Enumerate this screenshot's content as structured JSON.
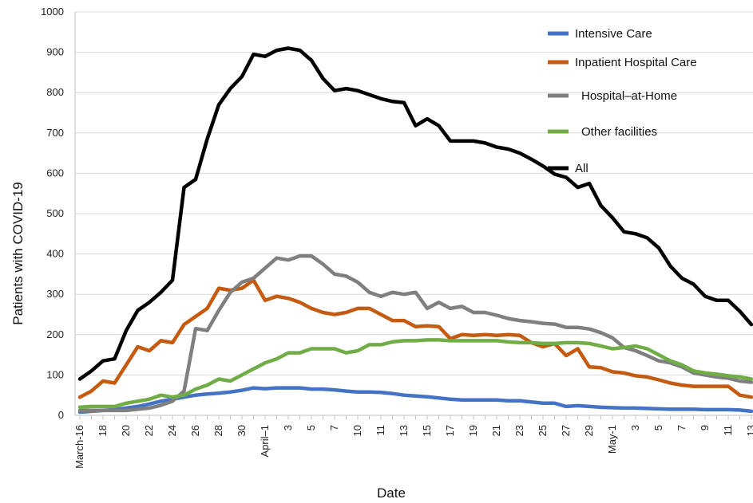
{
  "chart_data": {
    "type": "line",
    "xlabel": "Date",
    "ylabel": "Patients with COVID-19",
    "ylim": [
      0,
      1000
    ],
    "yticks": [
      0,
      100,
      200,
      300,
      400,
      500,
      600,
      700,
      800,
      900,
      1000
    ],
    "ytick_labels": [
      "0",
      "100",
      "200",
      "300",
      "400",
      "500",
      "600",
      "700",
      "800",
      "900",
      "1000"
    ],
    "x": [
      "March-16",
      "17",
      "18",
      "19",
      "20",
      "21",
      "22",
      "23",
      "24",
      "25",
      "26",
      "27",
      "28",
      "29",
      "30",
      "31",
      "April-1",
      "2",
      "3",
      "4",
      "5",
      "6",
      "7",
      "8",
      "9",
      "10",
      "11",
      "12",
      "13",
      "14",
      "15",
      "16",
      "17",
      "18",
      "19",
      "20",
      "21",
      "22",
      "23",
      "24",
      "25",
      "26",
      "27",
      "28",
      "29",
      "30",
      "May-1",
      "2",
      "3",
      "4",
      "5",
      "6",
      "7",
      "8",
      "9",
      "10",
      "11",
      "12",
      "13"
    ],
    "xtick_labels": [
      {
        "index": 0,
        "label": "March-16"
      },
      {
        "index": 2,
        "label": "18"
      },
      {
        "index": 4,
        "label": "20"
      },
      {
        "index": 6,
        "label": "22"
      },
      {
        "index": 8,
        "label": "24"
      },
      {
        "index": 10,
        "label": "26"
      },
      {
        "index": 12,
        "label": "28"
      },
      {
        "index": 14,
        "label": "30"
      },
      {
        "index": 16,
        "label": "April–1"
      },
      {
        "index": 18,
        "label": "3"
      },
      {
        "index": 20,
        "label": "5"
      },
      {
        "index": 22,
        "label": "7"
      },
      {
        "index": 24,
        "label": "10"
      },
      {
        "index": 26,
        "label": "11"
      },
      {
        "index": 28,
        "label": "13"
      },
      {
        "index": 30,
        "label": "15"
      },
      {
        "index": 32,
        "label": "17"
      },
      {
        "index": 34,
        "label": "19"
      },
      {
        "index": 36,
        "label": "21"
      },
      {
        "index": 38,
        "label": "23"
      },
      {
        "index": 40,
        "label": "25"
      },
      {
        "index": 42,
        "label": "27"
      },
      {
        "index": 44,
        "label": "29"
      },
      {
        "index": 46,
        "label": "May-1"
      },
      {
        "index": 48,
        "label": "3"
      },
      {
        "index": 50,
        "label": "5"
      },
      {
        "index": 52,
        "label": "7"
      },
      {
        "index": 54,
        "label": "9"
      },
      {
        "index": 56,
        "label": "11"
      },
      {
        "index": 58,
        "label": "13"
      }
    ],
    "grid": "horizontal",
    "legend_position": "top-right",
    "series": [
      {
        "name": "Intensive Care",
        "color": "#4472C4",
        "values": [
          8,
          10,
          12,
          14,
          18,
          22,
          28,
          35,
          40,
          45,
          50,
          53,
          55,
          58,
          62,
          68,
          66,
          68,
          68,
          68,
          65,
          65,
          63,
          60,
          58,
          58,
          57,
          54,
          50,
          48,
          46,
          43,
          40,
          38,
          38,
          38,
          38,
          36,
          36,
          33,
          30,
          30,
          22,
          24,
          22,
          20,
          19,
          18,
          18,
          17,
          16,
          15,
          15,
          15,
          14,
          14,
          14,
          13,
          10
        ]
      },
      {
        "name": "Inpatient Hospital Care",
        "color": "#C55A11",
        "values": [
          45,
          60,
          85,
          80,
          125,
          170,
          160,
          185,
          180,
          225,
          245,
          265,
          315,
          310,
          315,
          335,
          285,
          295,
          290,
          280,
          265,
          255,
          250,
          255,
          265,
          265,
          250,
          235,
          235,
          220,
          222,
          220,
          190,
          200,
          198,
          200,
          198,
          200,
          198,
          180,
          170,
          178,
          148,
          165,
          120,
          118,
          108,
          105,
          98,
          95,
          88,
          80,
          75,
          72,
          72,
          72,
          72,
          50,
          45
        ]
      },
      {
        "name": "Hospital–at-Home",
        "color": "#7F7F7F",
        "values": [
          12,
          12,
          12,
          12,
          12,
          15,
          18,
          25,
          35,
          60,
          215,
          210,
          260,
          305,
          330,
          340,
          365,
          390,
          385,
          395,
          395,
          375,
          350,
          345,
          330,
          305,
          295,
          305,
          300,
          305,
          265,
          280,
          265,
          270,
          255,
          255,
          248,
          240,
          235,
          232,
          228,
          226,
          218,
          218,
          214,
          205,
          192,
          168,
          160,
          148,
          135,
          130,
          120,
          105,
          100,
          95,
          92,
          85,
          82
        ]
      },
      {
        "name": "Other facilities",
        "color": "#70AD47",
        "values": [
          20,
          22,
          22,
          22,
          30,
          35,
          40,
          50,
          45,
          50,
          65,
          75,
          90,
          85,
          100,
          115,
          130,
          140,
          155,
          155,
          165,
          165,
          165,
          155,
          160,
          175,
          175,
          182,
          185,
          185,
          187,
          187,
          185,
          185,
          185,
          185,
          185,
          182,
          180,
          180,
          178,
          178,
          180,
          180,
          178,
          172,
          165,
          168,
          172,
          165,
          150,
          135,
          125,
          110,
          105,
          102,
          98,
          95,
          90
        ]
      },
      {
        "name": "All",
        "color": "#000000",
        "values": [
          90,
          110,
          135,
          140,
          210,
          260,
          280,
          305,
          335,
          565,
          585,
          685,
          770,
          810,
          840,
          895,
          890,
          905,
          910,
          905,
          880,
          835,
          805,
          810,
          805,
          795,
          785,
          778,
          775,
          718,
          735,
          718,
          680,
          680,
          680,
          675,
          665,
          660,
          650,
          635,
          618,
          598,
          590,
          565,
          575,
          520,
          490,
          455,
          450,
          440,
          415,
          370,
          340,
          325,
          295,
          285,
          285,
          258,
          225
        ]
      }
    ]
  }
}
